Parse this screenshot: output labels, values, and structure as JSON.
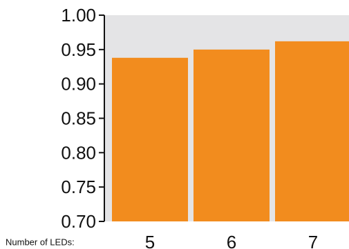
{
  "chart_data": {
    "type": "bar",
    "categories": [
      "5",
      "6",
      "7"
    ],
    "values": [
      0.938,
      0.95,
      0.962
    ],
    "xlabel": "Number of LEDs:",
    "ylabel": "",
    "ylim": [
      0.7,
      1.0
    ],
    "yticks": [
      "0.70",
      "0.75",
      "0.80",
      "0.85",
      "0.90",
      "0.95",
      "1.00"
    ],
    "grid": false,
    "legend": "none",
    "colors": {
      "bar": "#f28c1e",
      "plot_background": "#e4e4e6",
      "axis": "#111111"
    }
  }
}
